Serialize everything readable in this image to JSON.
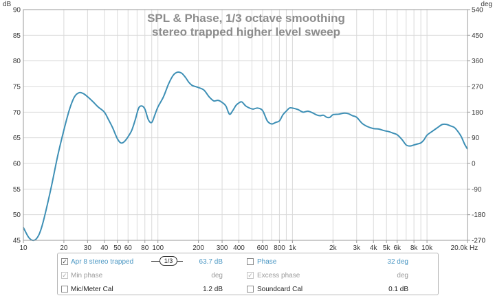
{
  "chart_data": {
    "type": "line",
    "title": "SPL & Phase, 1/3 octave smoothing",
    "subtitle": "stereo trapped higher level sweep",
    "y_unit": "dB",
    "y2_unit": "deg",
    "x_unit": "Hz",
    "x_scale": "log",
    "xlim": [
      10,
      20000
    ],
    "ylim": [
      45,
      90
    ],
    "y2lim": [
      -270,
      540
    ],
    "x_ticks": [
      10,
      20,
      30,
      40,
      50,
      60,
      80,
      100,
      200,
      300,
      400,
      600,
      800,
      1000,
      2000,
      3000,
      4000,
      5000,
      6000,
      8000,
      10000,
      20000
    ],
    "x_tick_labels": [
      "10",
      "20",
      "30",
      "40",
      "50",
      "60",
      "80",
      "100",
      "200",
      "300",
      "400",
      "600",
      "800",
      "1k",
      "2k",
      "3k",
      "4k",
      "5k",
      "6k",
      "8k",
      "10k",
      "20.0k"
    ],
    "y_ticks": [
      45,
      50,
      55,
      60,
      65,
      70,
      75,
      80,
      85,
      90
    ],
    "y2_ticks": [
      -270,
      -180,
      -90,
      0,
      90,
      180,
      270,
      360,
      450,
      540
    ],
    "grid": true,
    "series": [
      {
        "name": "Apr 8 stereo trapped",
        "color": "#3d8fb5",
        "x": [
          10,
          11,
          12,
          13,
          14,
          16,
          18,
          20,
          22,
          24,
          26,
          28,
          30,
          33,
          36,
          40,
          43,
          46,
          50,
          53,
          56,
          60,
          64,
          68,
          72,
          76,
          80,
          85,
          90,
          95,
          100,
          110,
          120,
          130,
          140,
          150,
          160,
          170,
          180,
          190,
          200,
          220,
          240,
          260,
          280,
          300,
          320,
          340,
          360,
          380,
          400,
          420,
          450,
          480,
          510,
          550,
          600,
          650,
          700,
          750,
          800,
          850,
          900,
          950,
          1000,
          1100,
          1200,
          1300,
          1400,
          1500,
          1600,
          1700,
          1800,
          1900,
          2000,
          2200,
          2400,
          2600,
          2800,
          3000,
          3300,
          3600,
          4000,
          4400,
          4800,
          5200,
          5600,
          6000,
          6500,
          7000,
          7500,
          8000,
          8500,
          9000,
          9500,
          10000,
          11000,
          12000,
          13000,
          14000,
          15000,
          16000,
          17000,
          18000,
          19000,
          20000
        ],
        "values": [
          47.5,
          45.5,
          45.0,
          46.0,
          48.5,
          55.0,
          61.5,
          66.5,
          70.5,
          73.0,
          73.8,
          73.6,
          73.0,
          72.0,
          71.0,
          70.0,
          68.5,
          67.0,
          64.8,
          64.0,
          64.2,
          65.2,
          66.5,
          68.6,
          70.8,
          71.2,
          70.6,
          68.5,
          68.0,
          69.5,
          71.0,
          73.0,
          75.5,
          77.2,
          77.8,
          77.6,
          76.8,
          75.8,
          75.2,
          75.0,
          74.8,
          74.3,
          73.0,
          72.2,
          72.3,
          71.9,
          71.2,
          69.6,
          70.3,
          71.3,
          71.8,
          72.0,
          71.2,
          70.8,
          70.6,
          70.8,
          70.3,
          68.3,
          67.7,
          68.0,
          68.3,
          69.5,
          70.2,
          70.8,
          70.8,
          70.5,
          70.0,
          70.2,
          69.9,
          69.5,
          69.3,
          69.4,
          69.0,
          69.0,
          69.5,
          69.6,
          69.8,
          69.7,
          69.3,
          69.0,
          67.8,
          67.2,
          66.8,
          66.7,
          66.4,
          66.2,
          65.9,
          65.6,
          64.7,
          63.6,
          63.4,
          63.6,
          63.8,
          64.0,
          64.6,
          65.5,
          66.3,
          67.0,
          67.6,
          67.6,
          67.3,
          67.0,
          66.2,
          65.2,
          63.8,
          62.8
        ]
      }
    ]
  },
  "legend": {
    "row1": {
      "checkbox": "✓",
      "label": "Apr 8 stereo trapped",
      "smoothing": "1/3",
      "value": "63.7 dB",
      "phase_label": "Phase",
      "phase_value": "32 deg"
    },
    "row2": {
      "checkbox": "✓",
      "label": "Min phase",
      "value": "deg",
      "phase_checkbox": "✓",
      "phase_label": "Excess phase",
      "phase_value": "deg"
    },
    "row3": {
      "label": "Mic/Meter Cal",
      "value": "1.2 dB",
      "phase_label": "Soundcard Cal",
      "phase_value": "0.1 dB"
    }
  }
}
